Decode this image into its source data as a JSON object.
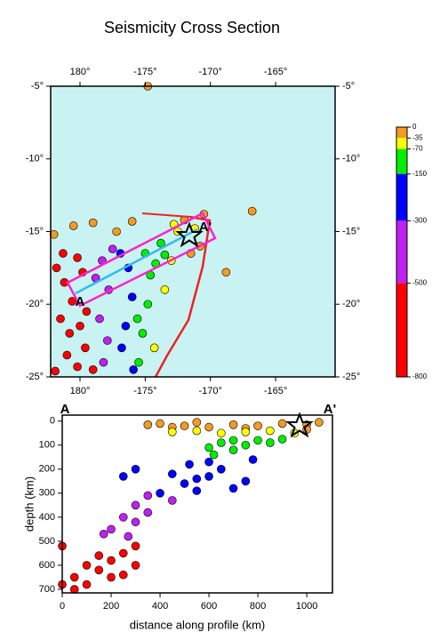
{
  "title": "Seismicity Cross Section",
  "map": {
    "type": "scatter",
    "xlim": [
      -182.25,
      -160.44
    ],
    "ylim": [
      -25,
      -5
    ],
    "xticks": [
      {
        "value": -180,
        "label": "180°"
      },
      {
        "value": -175,
        "label": "-175°"
      },
      {
        "value": -170,
        "label": "-170°"
      },
      {
        "value": -165,
        "label": "-165°"
      }
    ],
    "yticks": [
      {
        "value": -5,
        "label": "-5°"
      },
      {
        "value": -10,
        "label": "-10°"
      },
      {
        "value": -15,
        "label": "-15°"
      },
      {
        "value": -20,
        "label": "-20°"
      },
      {
        "value": -25,
        "label": "-25°"
      }
    ],
    "background": "#c9f3f3",
    "start_label": "A",
    "end_label": "A'",
    "lon": [
      -181.8,
      -181.2,
      -180.6,
      -181.5,
      -180.8,
      -181.0,
      -180.2,
      -179.6,
      -180.0,
      -181.9,
      -179.0,
      -179.5,
      -181.3,
      -179.8,
      -180.2,
      -178.3,
      -177.8,
      -178.5,
      -177.9,
      -178.2,
      -177.5,
      -178.8,
      -176.3,
      -176.0,
      -176.5,
      -176.8,
      -175.9,
      -176.9,
      -175.0,
      -174.6,
      -174.8,
      -175.2,
      -175.5,
      -173.8,
      -174.2,
      -173.5,
      -175.6,
      -172.5,
      -173.0,
      -172.8,
      -171.2,
      -173.5,
      -174.3,
      -172.0,
      -171.5,
      -180.5,
      -179.0,
      -176.0,
      -174.8,
      -166.8,
      -170.8,
      -170.5,
      -168.8,
      -182.0,
      -177.2
    ],
    "lat": [
      -17.5,
      -18.5,
      -19.8,
      -21,
      -22,
      -23.5,
      -24.3,
      -23,
      -21.5,
      -24.6,
      -24.5,
      -20.5,
      -16.5,
      -17.8,
      -16.8,
      -17,
      -19,
      -21,
      -22.5,
      -24,
      -16.2,
      -18.2,
      -17.5,
      -19.5,
      -21.5,
      -23,
      -24.5,
      -16.5,
      -16.5,
      -18,
      -20,
      -22,
      -24,
      -15.8,
      -17.2,
      -16.6,
      -21,
      -15,
      -17,
      -14.5,
      -14.8,
      -19,
      -23,
      -14.2,
      -16.5,
      -14.6,
      -14.4,
      -14.3,
      -5.0,
      -13.6,
      -16,
      -13.8,
      -17.8,
      -15.2,
      -15.0
    ],
    "depth": [
      600,
      620,
      580,
      650,
      600,
      560,
      590,
      520,
      640,
      610,
      540,
      550,
      610,
      530,
      520,
      400,
      420,
      450,
      380,
      470,
      350,
      480,
      250,
      200,
      230,
      280,
      210,
      270,
      100,
      120,
      90,
      110,
      130,
      80,
      140,
      95,
      100,
      50,
      45,
      60,
      40,
      55,
      60,
      15,
      20,
      10,
      25,
      20,
      10,
      15,
      30,
      10,
      20,
      15,
      30
    ]
  },
  "colorbar": {
    "boundaries": [
      0,
      -35,
      -70,
      -150,
      -300,
      -500,
      -800
    ],
    "colors": [
      "#f59a22",
      "#ffff00",
      "#00ee00",
      "#0000ff",
      "#c020f0",
      "#ff0000"
    ]
  },
  "section": {
    "type": "scatter",
    "xlabel": "distance along profile (km)",
    "ylabel": "depth (km)",
    "xlim": [
      0,
      1105
    ],
    "ylim": [
      715,
      -25
    ],
    "xticks": [
      0,
      200,
      400,
      600,
      800,
      1000
    ],
    "yticks": [
      0,
      100,
      200,
      300,
      400,
      500,
      600,
      700
    ],
    "start_label": "A",
    "end_label": "A'",
    "distance": [
      350,
      400,
      500,
      600,
      700,
      800,
      900,
      1000,
      1050,
      450,
      550,
      750,
      450,
      550,
      650,
      750,
      850,
      950,
      1000,
      600,
      650,
      700,
      750,
      800,
      850,
      900,
      700,
      620,
      450,
      500,
      550,
      600,
      650,
      700,
      750,
      550,
      520,
      300,
      250,
      780,
      600,
      300,
      350,
      250,
      300,
      200,
      350,
      400,
      270,
      450,
      170,
      50,
      100,
      150,
      200,
      250,
      300,
      100,
      200,
      50,
      150,
      0,
      250,
      300,
      0
    ],
    "depth": [
      15,
      10,
      20,
      25,
      15,
      20,
      10,
      15,
      5,
      25,
      5,
      30,
      45,
      40,
      50,
      45,
      40,
      50,
      35,
      110,
      90,
      120,
      100,
      80,
      90,
      75,
      80,
      140,
      220,
      260,
      240,
      230,
      200,
      280,
      250,
      290,
      180,
      200,
      230,
      160,
      170,
      350,
      380,
      400,
      420,
      450,
      310,
      300,
      480,
      330,
      470,
      650,
      600,
      620,
      580,
      550,
      600,
      680,
      650,
      700,
      560,
      520,
      640,
      520,
      680
    ]
  }
}
